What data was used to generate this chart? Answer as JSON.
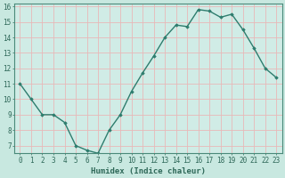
{
  "xlabel": "Humidex (Indice chaleur)",
  "x": [
    0,
    1,
    2,
    3,
    4,
    5,
    6,
    7,
    8,
    9,
    10,
    11,
    12,
    13,
    14,
    15,
    16,
    17,
    18,
    19,
    20,
    21,
    22,
    23
  ],
  "y": [
    11,
    10,
    9,
    9,
    8.5,
    7,
    6.7,
    6.5,
    8,
    9,
    10.5,
    11.7,
    12.8,
    14,
    14.8,
    14.7,
    15.8,
    15.7,
    15.3,
    15.5,
    14.5,
    13.3,
    12,
    11.4
  ],
  "line_color": "#2e7d6e",
  "marker": "D",
  "marker_size": 1.8,
  "bg_color": "#c8e8e0",
  "grid_color": "#e8b8b8",
  "axis_bg": "#d0ece6",
  "ylim": [
    6.5,
    16.2
  ],
  "yticks": [
    7,
    8,
    9,
    10,
    11,
    12,
    13,
    14,
    15,
    16
  ],
  "xticks": [
    0,
    1,
    2,
    3,
    4,
    5,
    6,
    7,
    8,
    9,
    10,
    11,
    12,
    13,
    14,
    15,
    16,
    17,
    18,
    19,
    20,
    21,
    22,
    23
  ],
  "xlabel_fontsize": 6.5,
  "tick_fontsize": 5.5,
  "line_width": 1.0
}
